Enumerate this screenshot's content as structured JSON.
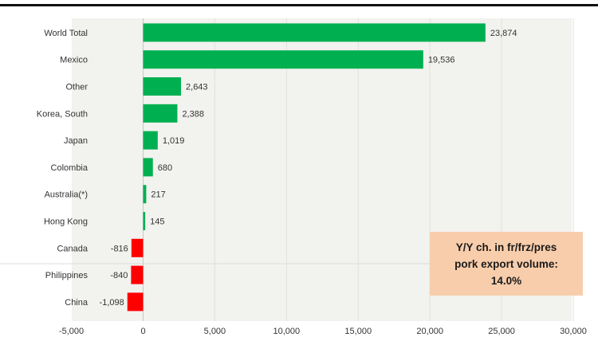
{
  "header": {
    "note": ""
  },
  "callout": {
    "line1": "Y/Y ch. in fr/frz/pres",
    "line2": "pork export volume:",
    "line3": "14.0%"
  },
  "colors": {
    "positive": "#00b050",
    "negative": "#ff0000",
    "plot_bg": "#f2f2ef",
    "grid": "#e0e0dc",
    "callout_bg": "#f8cdab"
  },
  "chart_data": {
    "type": "bar",
    "orientation": "horizontal",
    "categories": [
      "World Total",
      "Mexico",
      "Other",
      "Korea, South",
      "Japan",
      "Colombia",
      "Australia(*)",
      "Hong Kong",
      "Canada",
      "Philippines",
      "China"
    ],
    "values": [
      23874,
      19536,
      2643,
      2388,
      1019,
      680,
      217,
      145,
      -816,
      -840,
      -1098
    ],
    "data_labels": [
      "23,874",
      "19,536",
      "2,643",
      "2,388",
      "1,019",
      "680",
      "217",
      "145",
      "-816",
      "-840",
      "-1,098"
    ],
    "xticks": [
      "-5,000",
      "0",
      "5,000",
      "10,000",
      "15,000",
      "20,000",
      "25,000",
      "30,000"
    ],
    "xtick_values": [
      -5000,
      0,
      5000,
      10000,
      15000,
      20000,
      25000,
      30000
    ],
    "xlim": [
      -5000,
      30000
    ],
    "grid": true,
    "title": "",
    "xlabel": "",
    "ylabel": ""
  }
}
